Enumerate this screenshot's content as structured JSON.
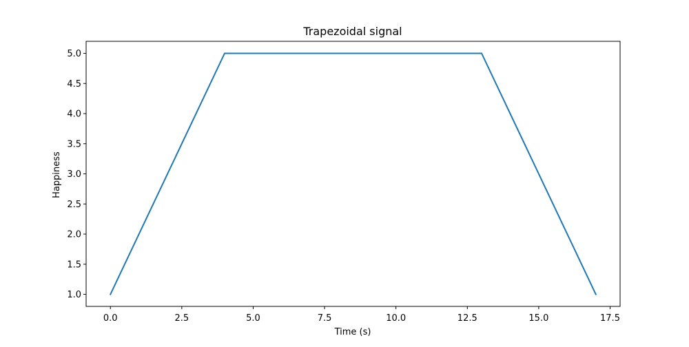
{
  "chart_data": {
    "type": "line",
    "title": "Trapezoidal signal",
    "xlabel": "Time (s)",
    "ylabel": "Happiness",
    "xlim": [
      -0.85,
      17.85
    ],
    "ylim": [
      0.8,
      5.2
    ],
    "x_ticks": [
      0.0,
      2.5,
      5.0,
      7.5,
      10.0,
      12.5,
      15.0,
      17.5
    ],
    "x_tick_labels": [
      "0.0",
      "2.5",
      "5.0",
      "7.5",
      "10.0",
      "12.5",
      "15.0",
      "17.5"
    ],
    "y_ticks": [
      1.0,
      1.5,
      2.0,
      2.5,
      3.0,
      3.5,
      4.0,
      4.5,
      5.0
    ],
    "y_tick_labels": [
      "1.0",
      "1.5",
      "2.0",
      "2.5",
      "3.0",
      "3.5",
      "4.0",
      "4.5",
      "5.0"
    ],
    "grid": false,
    "legend": "none",
    "series": [
      {
        "x": [
          0,
          4,
          13,
          17
        ],
        "y": [
          1,
          5,
          5,
          1
        ],
        "color": "#1f77b4"
      }
    ]
  }
}
